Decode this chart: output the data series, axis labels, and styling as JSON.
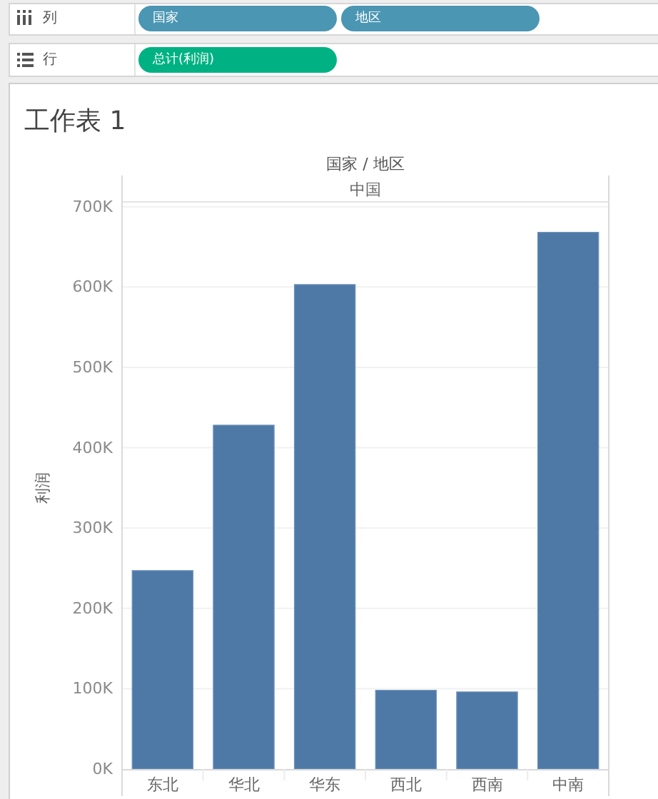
{
  "chart_data": {
    "type": "bar",
    "title": "工作表 1",
    "xlabel": "国家 / 地区",
    "ylabel": "利润",
    "categories": [
      "东北",
      "华北",
      "华东",
      "西北",
      "西南",
      "中南"
    ],
    "values": [
      247000,
      428000,
      603000,
      98000,
      96000,
      668000
    ],
    "color": "#4e79a7",
    "ylim": [
      0,
      705000
    ],
    "yticks": [
      {
        "value": 0,
        "label": "0K"
      },
      {
        "value": 100000,
        "label": "100K"
      },
      {
        "value": 200000,
        "label": "200K"
      },
      {
        "value": 300000,
        "label": "300K"
      },
      {
        "value": 400000,
        "label": "400K"
      },
      {
        "value": 500000,
        "label": "500K"
      },
      {
        "value": 600000,
        "label": "600K"
      },
      {
        "value": 700000,
        "label": "700K"
      }
    ],
    "grid": "y",
    "annotations": [
      "列",
      "国家",
      "地区",
      "行",
      "总计(利润)",
      "中国"
    ]
  }
}
